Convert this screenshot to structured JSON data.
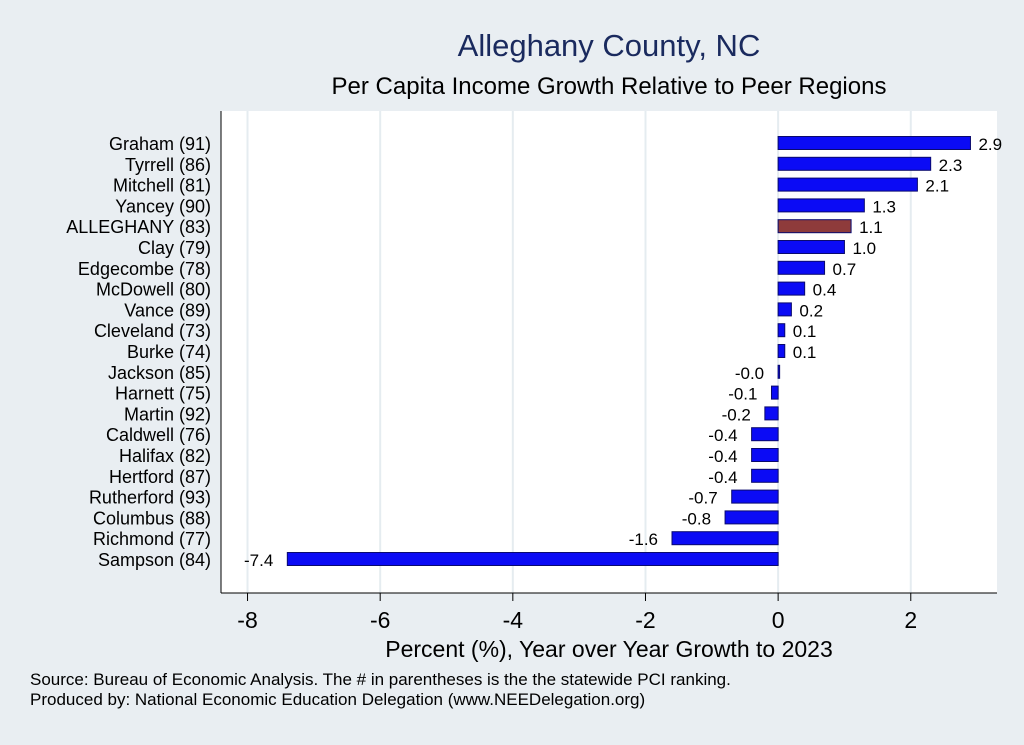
{
  "chart_data": {
    "type": "bar",
    "orientation": "horizontal",
    "title": "Alleghany County, NC",
    "subtitle": "Per Capita Income Growth Relative to Peer Regions",
    "xlabel": "Percent (%), Year over Year Growth to 2023",
    "ylabel": "",
    "xlim": [
      -8.4,
      3.3
    ],
    "xticks": [
      -8,
      -6,
      -4,
      -2,
      0,
      2
    ],
    "grid": true,
    "categories": [
      "Graham (91)",
      "Tyrrell (86)",
      "Mitchell (81)",
      "Yancey (90)",
      "ALLEGHANY (83)",
      "Clay (79)",
      "Edgecombe (78)",
      "McDowell (80)",
      "Vance (89)",
      "Cleveland (73)",
      "Burke (74)",
      "Jackson (85)",
      "Harnett (75)",
      "Martin (92)",
      "Caldwell (76)",
      "Halifax (82)",
      "Hertford (87)",
      "Rutherford (93)",
      "Columbus (88)",
      "Richmond (77)",
      "Sampson (84)"
    ],
    "values": [
      2.9,
      2.3,
      2.1,
      1.3,
      1.1,
      1.0,
      0.7,
      0.4,
      0.2,
      0.1,
      0.1,
      -0.0,
      -0.1,
      -0.2,
      -0.4,
      -0.4,
      -0.4,
      -0.7,
      -0.8,
      -1.6,
      -7.4
    ],
    "value_labels": [
      "2.9",
      "2.3",
      "2.1",
      "1.3",
      "1.1",
      "1.0",
      "0.7",
      "0.4",
      "0.2",
      "0.1",
      "0.1",
      "-0.0",
      "-0.1",
      "-0.2",
      "-0.4",
      "-0.4",
      "-0.4",
      "-0.7",
      "-0.8",
      "-1.6",
      "-7.4"
    ],
    "highlight": "ALLEGHANY (83)",
    "colors": {
      "bar": "#0b0bf5",
      "highlight": "#8e3b3b",
      "bar_border": "#0a0a6e",
      "grid": "#e5ecf0",
      "page_background": "#e9eef2",
      "plot_background": "#ffffff"
    }
  },
  "footer": {
    "source": "Source: Bureau of Economic Analysis. The # in parentheses is the the statewide PCI ranking.",
    "producer": "Produced by: National Economic Education Delegation (www.NEEDelegation.org)"
  }
}
